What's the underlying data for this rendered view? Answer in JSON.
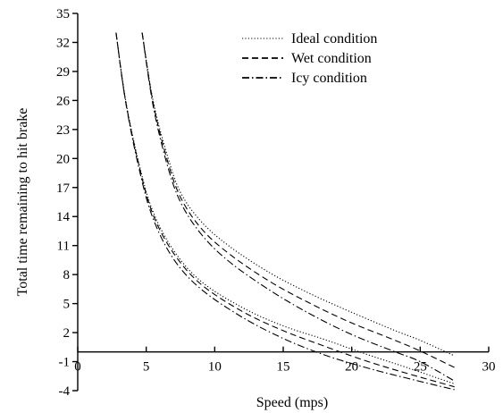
{
  "chart_data": {
    "type": "line",
    "xlabel": "Speed (mps)",
    "ylabel": "Total time remaining to hit brake",
    "xlim": [
      0,
      30
    ],
    "ylim": [
      -4,
      35
    ],
    "x_ticks": [
      0,
      5,
      10,
      15,
      20,
      25,
      30
    ],
    "y_ticks": [
      -4,
      -1,
      2,
      5,
      8,
      11,
      14,
      17,
      20,
      23,
      26,
      29,
      32,
      35
    ],
    "x_axis_at_y": 0,
    "grid": false,
    "legend_position": "top-center",
    "series": [
      {
        "name": "Ideal condition",
        "style": "dotted",
        "group": "upper",
        "x": [
          4.7,
          5.5,
          6.5,
          7.5,
          9.0,
          11.0,
          14.0,
          17.0,
          20.0,
          23.0,
          25.0,
          27.5
        ],
        "y": [
          33,
          26,
          20.5,
          16.5,
          13.5,
          11.0,
          8.2,
          6.0,
          4.1,
          2.3,
          1.2,
          -0.4
        ]
      },
      {
        "name": "Wet condition",
        "style": "dashed",
        "group": "upper",
        "x": [
          4.7,
          5.5,
          6.5,
          7.5,
          9.0,
          11.0,
          14.0,
          17.0,
          20.0,
          23.0,
          25.0,
          27.5
        ],
        "y": [
          33,
          25.8,
          20.0,
          16.0,
          12.8,
          10.2,
          7.3,
          5.0,
          3.0,
          1.3,
          0.1,
          -1.6
        ]
      },
      {
        "name": "Icy condition",
        "style": "dashdot",
        "group": "upper",
        "x": [
          4.7,
          5.5,
          6.5,
          7.5,
          9.0,
          11.0,
          14.0,
          17.0,
          20.0,
          23.0,
          25.0,
          27.5
        ],
        "y": [
          33,
          25.5,
          19.5,
          15.5,
          12.2,
          9.4,
          6.4,
          3.9,
          1.8,
          0.1,
          -1.0,
          -3.0
        ]
      },
      {
        "name": "Ideal condition",
        "style": "dotted",
        "group": "lower",
        "x": [
          2.8,
          3.5,
          4.5,
          5.5,
          7.0,
          9.0,
          12.0,
          15.0,
          18.0,
          21.0,
          24.0,
          27.5
        ],
        "y": [
          33,
          26.0,
          19.3,
          14.5,
          10.5,
          7.3,
          4.6,
          2.7,
          1.3,
          -0.2,
          -1.6,
          -3.3
        ]
      },
      {
        "name": "Wet condition",
        "style": "dashed",
        "group": "lower",
        "x": [
          2.8,
          3.5,
          4.5,
          5.5,
          7.0,
          9.0,
          12.0,
          15.0,
          18.0,
          21.0,
          24.0,
          27.5
        ],
        "y": [
          33,
          25.9,
          19.1,
          14.2,
          10.2,
          7.0,
          4.2,
          2.2,
          0.6,
          -0.9,
          -2.2,
          -3.6
        ]
      },
      {
        "name": "Icy condition",
        "style": "dashdot",
        "group": "lower",
        "x": [
          2.8,
          3.5,
          4.5,
          5.5,
          7.0,
          9.0,
          12.0,
          15.0,
          18.0,
          21.0,
          24.0,
          27.5
        ],
        "y": [
          33,
          25.8,
          18.8,
          13.8,
          9.6,
          6.5,
          3.6,
          1.4,
          -0.3,
          -1.6,
          -2.7,
          -3.9
        ]
      }
    ],
    "legend": [
      {
        "label": "Ideal condition",
        "style": "dotted"
      },
      {
        "label": "Wet condition",
        "style": "dashed"
      },
      {
        "label": "Icy condition",
        "style": "dashdot"
      }
    ]
  }
}
